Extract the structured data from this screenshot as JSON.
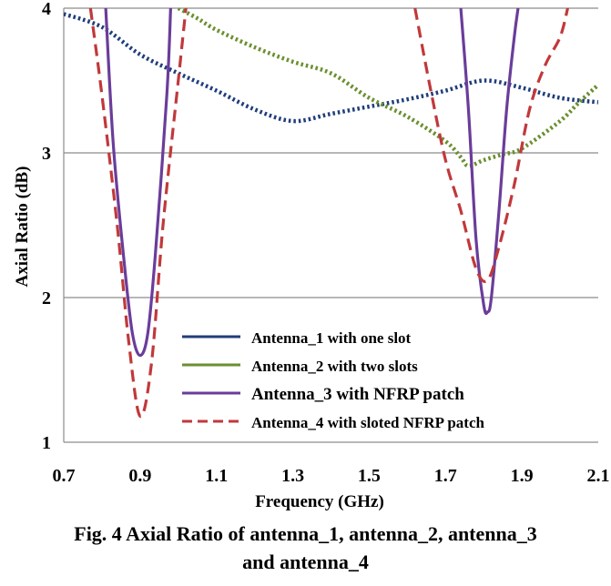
{
  "chart_data": {
    "type": "line",
    "title": "",
    "xlabel": "Frequency (GHz)",
    "ylabel": "Axial Ratio (dB)",
    "xlim": [
      0.7,
      2.1
    ],
    "ylim": [
      1,
      4
    ],
    "xticks": [
      "0.7",
      "0.9",
      "1.1",
      "1.3",
      "1.5",
      "1.7",
      "1.9",
      "2.1"
    ],
    "yticks": [
      "1",
      "2",
      "3",
      "4"
    ],
    "grid": "horizontal",
    "legend_position": "bottom-right",
    "series": [
      {
        "name": "Antenna_1 with one slot",
        "color": "#1f3d7a",
        "style": "dotted",
        "x": [
          0.7,
          0.8,
          0.9,
          1.0,
          1.1,
          1.2,
          1.3,
          1.4,
          1.5,
          1.6,
          1.7,
          1.8,
          1.9,
          2.0,
          2.1
        ],
        "y": [
          3.96,
          3.87,
          3.68,
          3.55,
          3.43,
          3.3,
          3.22,
          3.27,
          3.32,
          3.37,
          3.43,
          3.5,
          3.45,
          3.38,
          3.35
        ]
      },
      {
        "name": "Antenna_2 with two slots",
        "color": "#6a8f2f",
        "style": "dotted",
        "x": [
          1.0,
          1.05,
          1.1,
          1.2,
          1.3,
          1.4,
          1.5,
          1.6,
          1.7,
          1.74,
          1.76,
          1.8,
          1.85,
          1.9,
          2.0,
          2.05,
          2.1
        ],
        "y": [
          4.0,
          3.93,
          3.85,
          3.73,
          3.63,
          3.55,
          3.38,
          3.25,
          3.08,
          2.97,
          2.91,
          2.95,
          2.99,
          3.03,
          3.22,
          3.35,
          3.47
        ]
      },
      {
        "name": "Antenna_3 with NFRP patch",
        "color": "#6a3d9a",
        "style": "solid",
        "x": [
          0.81,
          0.83,
          0.86,
          0.88,
          0.9,
          0.92,
          0.94,
          0.97,
          0.98,
          1.74,
          1.76,
          1.78,
          1.8,
          1.81,
          1.82,
          1.84,
          1.86,
          1.88,
          1.89
        ],
        "y": [
          4.0,
          3.05,
          2.2,
          1.75,
          1.6,
          1.75,
          2.3,
          3.4,
          4.0,
          4.0,
          3.3,
          2.4,
          1.95,
          1.9,
          2.0,
          2.6,
          3.3,
          3.8,
          4.0
        ]
      },
      {
        "name": "Antenna_4 with sloted NFRP patch",
        "color": "#c0393b",
        "style": "dashed",
        "x": [
          0.77,
          0.8,
          0.84,
          0.87,
          0.9,
          0.93,
          0.96,
          1.0,
          1.02,
          1.62,
          1.66,
          1.7,
          1.74,
          1.78,
          1.81,
          1.84,
          1.88,
          1.92,
          1.96,
          2.0,
          2.02
        ],
        "y": [
          4.0,
          3.4,
          2.5,
          1.7,
          1.18,
          1.55,
          2.5,
          3.5,
          4.0,
          4.0,
          3.45,
          2.95,
          2.6,
          2.2,
          2.12,
          2.35,
          2.78,
          3.3,
          3.6,
          3.8,
          4.0
        ]
      }
    ]
  },
  "caption": {
    "line1": "Fig. 4 Axial Ratio of antenna_1, antenna_2, antenna_3",
    "line2": "and antenna_4"
  }
}
